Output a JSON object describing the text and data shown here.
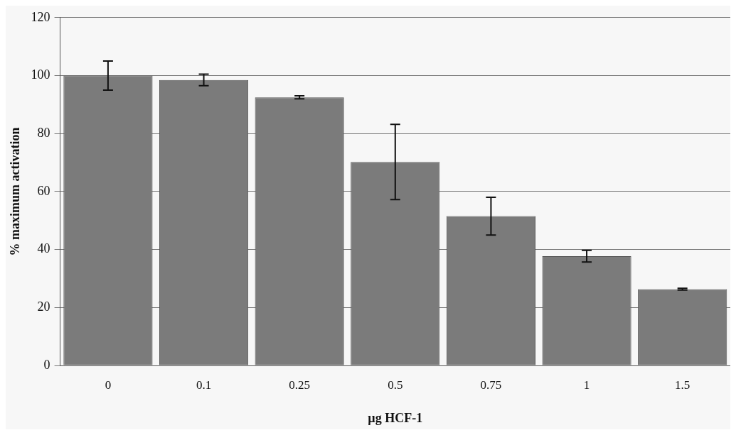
{
  "chart_data": {
    "type": "bar",
    "xlabel": "µg HCF-1",
    "ylabel": "% maximum activation",
    "categories": [
      "0",
      "0.1",
      "0.25",
      "0.5",
      "0.75",
      "1",
      "1.5"
    ],
    "values": [
      100,
      98.5,
      92.5,
      70.2,
      51.5,
      37.7,
      26.3
    ],
    "errors": [
      5,
      2,
      0.5,
      13,
      6.5,
      2,
      0.3
    ],
    "color": "#7b7b7b",
    "ylim": [
      0,
      120
    ],
    "yticks": [
      0,
      20,
      40,
      60,
      80,
      100,
      120
    ],
    "grid": "y"
  }
}
